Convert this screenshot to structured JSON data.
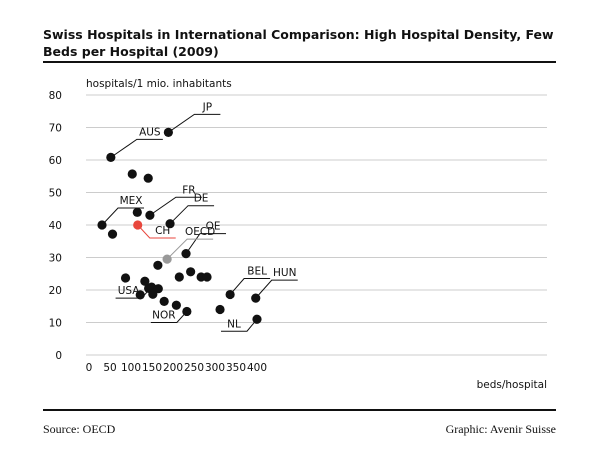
{
  "header": {
    "title": "Swiss Hospitals in International Comparison: High Hospital Density, Few Beds per Hospital (2009)"
  },
  "footer": {
    "source": "Source: OECD",
    "credit": "Graphic: Avenir Suisse"
  },
  "colors": {
    "point": "#111111",
    "highlight": "#e8463c",
    "oecd": "#999999",
    "grid": "#bbbbbb"
  },
  "chart_data": {
    "type": "scatter",
    "title": "Swiss Hospitals in International Comparison: High Hospital Density, Few Beds per Hospital (2009)",
    "xlabel": "beds/hospital",
    "ylabel": "hospitals/1 mio. inhabitants",
    "xlim": [
      0,
      420
    ],
    "ylim": [
      0,
      80
    ],
    "xticks": [
      0,
      50,
      100,
      150,
      200,
      250,
      300,
      350,
      400
    ],
    "yticks": [
      0,
      10,
      20,
      30,
      40,
      50,
      60,
      70,
      80
    ],
    "grid": "horizontal",
    "points": [
      {
        "x": 189,
        "y": 68.5,
        "label": "JP",
        "color": "black"
      },
      {
        "x": 52,
        "y": 60.8,
        "label": "AUS",
        "color": "black"
      },
      {
        "x": 103,
        "y": 55.7,
        "label": "",
        "color": "black"
      },
      {
        "x": 141,
        "y": 54.4,
        "label": "",
        "color": "black"
      },
      {
        "x": 145,
        "y": 43.0,
        "label": "FR",
        "color": "black"
      },
      {
        "x": 115,
        "y": 43.9,
        "label": "",
        "color": "black"
      },
      {
        "x": 193,
        "y": 40.4,
        "label": "DE",
        "color": "black"
      },
      {
        "x": 31,
        "y": 40.0,
        "label": "MEX",
        "color": "black"
      },
      {
        "x": 116,
        "y": 40.0,
        "label": "CH",
        "color": "highlight"
      },
      {
        "x": 56,
        "y": 37.2,
        "label": "",
        "color": "black"
      },
      {
        "x": 231,
        "y": 31.2,
        "label": "OE",
        "color": "black"
      },
      {
        "x": 186,
        "y": 29.5,
        "label": "OECD",
        "color": "oecd"
      },
      {
        "x": 164,
        "y": 27.6,
        "label": "",
        "color": "black"
      },
      {
        "x": 242,
        "y": 25.6,
        "label": "",
        "color": "black"
      },
      {
        "x": 87,
        "y": 23.7,
        "label": "",
        "color": "black"
      },
      {
        "x": 215,
        "y": 24.0,
        "label": "",
        "color": "black"
      },
      {
        "x": 267,
        "y": 24.0,
        "label": "",
        "color": "black"
      },
      {
        "x": 281,
        "y": 24.0,
        "label": "",
        "color": "black"
      },
      {
        "x": 133,
        "y": 22.7,
        "label": "",
        "color": "black"
      },
      {
        "x": 142,
        "y": 20.5,
        "label": "",
        "color": "black"
      },
      {
        "x": 149,
        "y": 20.9,
        "label": "USA",
        "color": "black"
      },
      {
        "x": 165,
        "y": 20.4,
        "label": "",
        "color": "black"
      },
      {
        "x": 122,
        "y": 18.5,
        "label": "",
        "color": "black"
      },
      {
        "x": 152,
        "y": 18.7,
        "label": "",
        "color": "black"
      },
      {
        "x": 179,
        "y": 16.5,
        "label": "",
        "color": "black"
      },
      {
        "x": 208,
        "y": 15.3,
        "label": "",
        "color": "black"
      },
      {
        "x": 336,
        "y": 18.6,
        "label": "BEL",
        "color": "black"
      },
      {
        "x": 397,
        "y": 17.5,
        "label": "HUN",
        "color": "black"
      },
      {
        "x": 233,
        "y": 13.4,
        "label": "NOR",
        "color": "black"
      },
      {
        "x": 312,
        "y": 14.0,
        "label": "",
        "color": "black"
      },
      {
        "x": 400,
        "y": 11.0,
        "label": "NL",
        "color": "black"
      }
    ]
  }
}
